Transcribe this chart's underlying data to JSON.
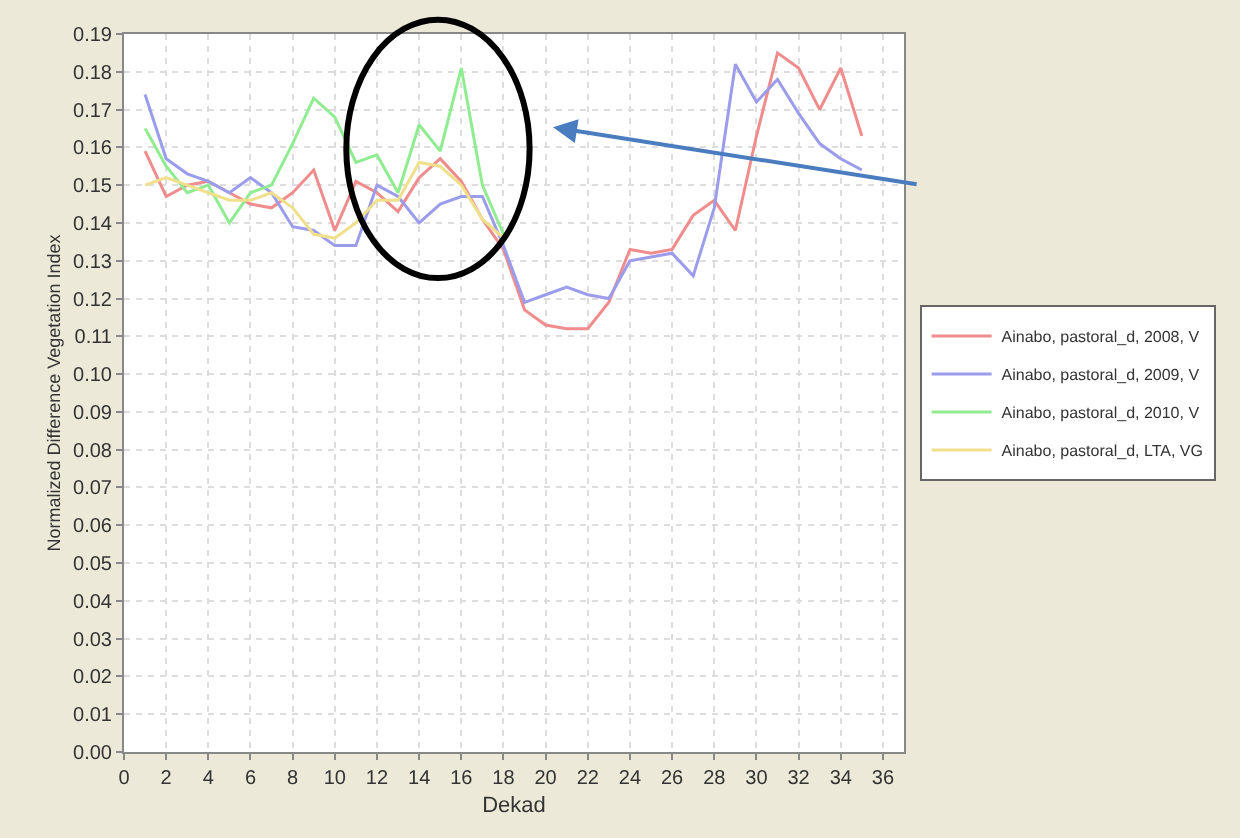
{
  "chart_data": {
    "type": "line",
    "xlabel": "Dekad",
    "ylabel": "Normalized Difference Vegetation Index",
    "xlim": [
      0,
      37
    ],
    "xticks": [
      0,
      2,
      4,
      6,
      8,
      10,
      12,
      14,
      16,
      18,
      20,
      22,
      24,
      26,
      28,
      30,
      32,
      34,
      36
    ],
    "ylim": [
      0,
      0.19
    ],
    "yticks": [
      {
        "value": 0,
        "label": "0.00"
      },
      {
        "value": 0.01,
        "label": "0.01"
      },
      {
        "value": 0.02,
        "label": "0.02"
      },
      {
        "value": 0.03,
        "label": "0.03"
      },
      {
        "value": 0.04,
        "label": "0.04"
      },
      {
        "value": 0.05,
        "label": "0.05"
      },
      {
        "value": 0.06,
        "label": "0.06"
      },
      {
        "value": 0.07,
        "label": "0.07"
      },
      {
        "value": 0.08,
        "label": "0.08"
      },
      {
        "value": 0.09,
        "label": "0.09"
      },
      {
        "value": 0.1,
        "label": "0.10"
      },
      {
        "value": 0.11,
        "label": "0.11"
      },
      {
        "value": 0.12,
        "label": "0.12"
      },
      {
        "value": 0.13,
        "label": "0.13"
      },
      {
        "value": 0.14,
        "label": "0.14"
      },
      {
        "value": 0.15,
        "label": "0.15"
      },
      {
        "value": 0.16,
        "label": "0.16"
      },
      {
        "value": 0.17,
        "label": "0.17"
      },
      {
        "value": 0.18,
        "label": "0.18"
      },
      {
        "value": 0.19,
        "label": "0.19"
      }
    ],
    "grid": true,
    "legend": "right",
    "marker": "none",
    "line_style": "solid",
    "series": [
      {
        "name": "Ainabo, pastoral_d, 2008, V",
        "color": "#f08c8c",
        "x": [
          1,
          2,
          3,
          4,
          5,
          6,
          7,
          8,
          9,
          10,
          11,
          12,
          13,
          14,
          15,
          16,
          17,
          18,
          19,
          20,
          21,
          22,
          23,
          24,
          25,
          26,
          27,
          28,
          29,
          30,
          31,
          32,
          33,
          34,
          35
        ],
        "values": [
          0.159,
          0.147,
          0.15,
          0.151,
          0.148,
          0.145,
          0.144,
          0.148,
          0.154,
          0.138,
          0.151,
          0.148,
          0.143,
          0.152,
          0.157,
          0.151,
          0.141,
          0.133,
          0.117,
          0.113,
          0.112,
          0.112,
          0.119,
          0.133,
          0.132,
          0.133,
          0.142,
          0.146,
          0.138,
          0.163,
          0.185,
          0.181,
          0.17,
          0.181,
          0.163
        ]
      },
      {
        "name": "Ainabo, pastoral_d, 2009, V",
        "color": "#9c9cec",
        "x": [
          1,
          2,
          3,
          4,
          5,
          6,
          7,
          8,
          9,
          10,
          11,
          12,
          13,
          14,
          15,
          16,
          17,
          18,
          19,
          20,
          21,
          22,
          23,
          24,
          25,
          26,
          27,
          28,
          29,
          30,
          31,
          32,
          33,
          34,
          35
        ],
        "values": [
          0.174,
          0.157,
          0.153,
          0.151,
          0.148,
          0.152,
          0.148,
          0.139,
          0.138,
          0.134,
          0.134,
          0.15,
          0.147,
          0.14,
          0.145,
          0.147,
          0.147,
          0.134,
          0.119,
          0.121,
          0.123,
          0.121,
          0.12,
          0.13,
          0.131,
          0.132,
          0.126,
          0.144,
          0.182,
          0.172,
          0.178,
          0.169,
          0.161,
          0.157,
          0.154
        ]
      },
      {
        "name": "Ainabo, pastoral_d, 2010, V",
        "color": "#90ec90",
        "x": [
          1,
          2,
          3,
          4,
          5,
          6,
          7,
          8,
          9,
          10,
          11,
          12,
          13,
          14,
          15,
          16,
          17,
          18
        ],
        "values": [
          0.165,
          0.155,
          0.148,
          0.15,
          0.14,
          0.148,
          0.15,
          0.161,
          0.173,
          0.168,
          0.156,
          0.158,
          0.148,
          0.166,
          0.159,
          0.181,
          0.15,
          0.137
        ]
      },
      {
        "name": "Ainabo, pastoral_d, LTA, VG",
        "color": "#f0e08c",
        "x": [
          1,
          2,
          3,
          4,
          5,
          6,
          7,
          8,
          9,
          10,
          11,
          12,
          13,
          14,
          15,
          16,
          17,
          18
        ],
        "values": [
          0.15,
          0.152,
          0.15,
          0.148,
          0.146,
          0.146,
          0.148,
          0.144,
          0.137,
          0.136,
          0.14,
          0.146,
          0.146,
          0.156,
          0.155,
          0.15,
          0.141,
          0.136
        ]
      }
    ]
  }
}
